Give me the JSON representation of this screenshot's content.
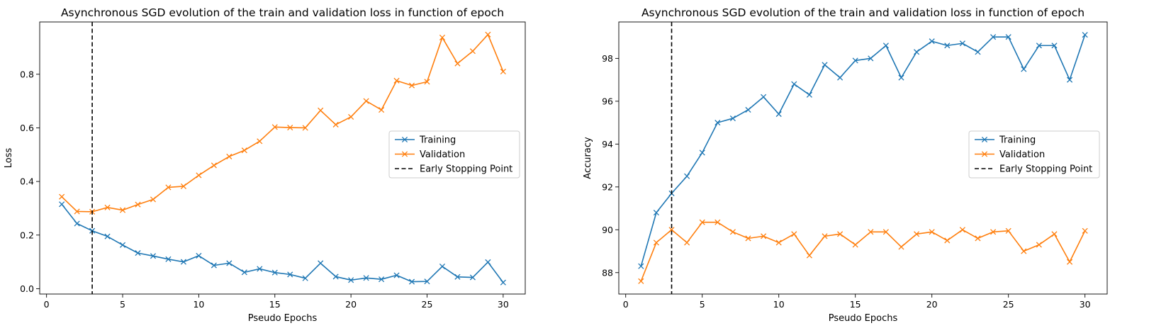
{
  "chart_data": [
    {
      "type": "line",
      "title": "Asynchronous SGD evolution of the train and validation loss in function of epoch",
      "xlabel": "Pseudo Epochs",
      "ylabel": "Loss",
      "xlim": [
        -0.45,
        31.45
      ],
      "ylim": [
        -0.02,
        0.995
      ],
      "xticks": [
        0,
        5,
        10,
        15,
        20,
        25,
        30
      ],
      "yticks": [
        0.0,
        0.2,
        0.4,
        0.6,
        0.8
      ],
      "ytick_labels": [
        "0.0",
        "0.2",
        "0.4",
        "0.6",
        "0.8"
      ],
      "grid": false,
      "legend_placement": "center-right",
      "early_stopping_x": 3,
      "early_stopping_label": "Early Stopping Point",
      "x": [
        1,
        2,
        3,
        4,
        5,
        6,
        7,
        8,
        9,
        10,
        11,
        12,
        13,
        14,
        15,
        16,
        17,
        18,
        19,
        20,
        21,
        22,
        23,
        24,
        25,
        26,
        27,
        28,
        29,
        30
      ],
      "series": [
        {
          "name": "Training",
          "color": "#1f77b4",
          "values": [
            0.315,
            0.243,
            0.216,
            0.195,
            0.163,
            0.133,
            0.122,
            0.11,
            0.1,
            0.123,
            0.087,
            0.095,
            0.061,
            0.074,
            0.06,
            0.053,
            0.039,
            0.095,
            0.045,
            0.032,
            0.04,
            0.035,
            0.05,
            0.026,
            0.027,
            0.083,
            0.044,
            0.042,
            0.099,
            0.023
          ]
        },
        {
          "name": "Validation",
          "color": "#ff7f0e",
          "values": [
            0.343,
            0.288,
            0.287,
            0.303,
            0.293,
            0.314,
            0.333,
            0.378,
            0.382,
            0.423,
            0.46,
            0.493,
            0.516,
            0.55,
            0.603,
            0.601,
            0.6,
            0.665,
            0.612,
            0.641,
            0.7,
            0.667,
            0.776,
            0.758,
            0.772,
            0.937,
            0.84,
            0.886,
            0.948,
            0.81
          ]
        }
      ]
    },
    {
      "type": "line",
      "title": "Asynchronous SGD evolution of the train and validation loss in function of epoch",
      "xlabel": "Pseudo Epochs",
      "ylabel": "Accuracy",
      "xlim": [
        -0.45,
        31.45
      ],
      "ylim": [
        87.0,
        99.7
      ],
      "xticks": [
        0,
        5,
        10,
        15,
        20,
        25,
        30
      ],
      "yticks": [
        88,
        90,
        92,
        94,
        96,
        98
      ],
      "ytick_labels": [
        "88",
        "90",
        "92",
        "94",
        "96",
        "98"
      ],
      "grid": false,
      "legend_placement": "center-right",
      "early_stopping_x": 3,
      "early_stopping_label": "Early Stopping Point",
      "x": [
        1,
        2,
        3,
        4,
        5,
        6,
        7,
        8,
        9,
        10,
        11,
        12,
        13,
        14,
        15,
        16,
        17,
        18,
        19,
        20,
        21,
        22,
        23,
        24,
        25,
        26,
        27,
        28,
        29,
        30
      ],
      "series": [
        {
          "name": "Training",
          "color": "#1f77b4",
          "values": [
            88.3,
            90.8,
            91.7,
            92.5,
            93.6,
            95.0,
            95.2,
            95.6,
            96.2,
            95.4,
            96.8,
            96.3,
            97.7,
            97.1,
            97.9,
            98.0,
            98.6,
            97.1,
            98.3,
            98.8,
            98.6,
            98.7,
            98.3,
            99.0,
            99.0,
            97.5,
            98.6,
            98.6,
            97.0,
            99.1
          ]
        },
        {
          "name": "Validation",
          "color": "#ff7f0e",
          "values": [
            87.6,
            89.4,
            90.0,
            89.4,
            90.35,
            90.35,
            89.9,
            89.6,
            89.7,
            89.4,
            89.8,
            88.8,
            89.7,
            89.8,
            89.3,
            89.9,
            89.9,
            89.2,
            89.8,
            89.9,
            89.5,
            90.0,
            89.6,
            89.9,
            89.95,
            89.0,
            89.3,
            89.8,
            88.5,
            89.95
          ]
        }
      ]
    }
  ]
}
